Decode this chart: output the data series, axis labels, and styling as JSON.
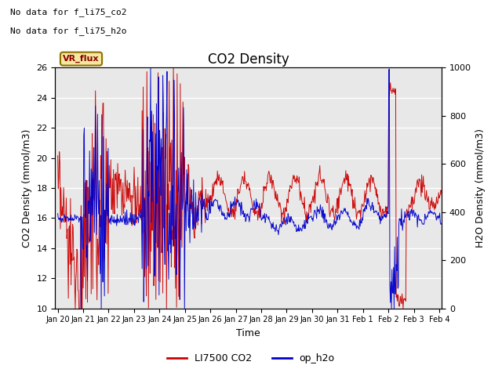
{
  "title": "CO2 Density",
  "xlabel": "Time",
  "ylabel_left": "CO2 Density (mmol/m3)",
  "ylabel_right": "H2O Density (mmol/m3)",
  "ylim_left": [
    10,
    26
  ],
  "ylim_right": [
    0,
    1000
  ],
  "yticks_left": [
    10,
    12,
    14,
    16,
    18,
    20,
    22,
    24,
    26
  ],
  "yticks_right": [
    0,
    200,
    400,
    600,
    800,
    1000
  ],
  "xtick_labels": [
    "Jan 20",
    "Jan 21",
    "Jan 22",
    "Jan 23",
    "Jan 24",
    "Jan 25",
    "Jan 26",
    "Jan 27",
    "Jan 28",
    "Jan 29",
    "Jan 30",
    "Jan 31",
    "Feb 1",
    "Feb 2",
    "Feb 3",
    "Feb 4"
  ],
  "legend_entries": [
    "LI7500 CO2",
    "op_h2o"
  ],
  "legend_colors": [
    "#cc0000",
    "#0000cc"
  ],
  "color_co2": "#cc0000",
  "color_h2o": "#0000cc",
  "annotation_text1": "No data for f_li75_co2",
  "annotation_text2": "No data for f_li75_h2o",
  "vr_flux_label": "VR_flux",
  "bg_color": "#e8e8e8",
  "title_fontsize": 12,
  "label_fontsize": 9,
  "tick_fontsize": 8,
  "annot_fontsize": 8
}
